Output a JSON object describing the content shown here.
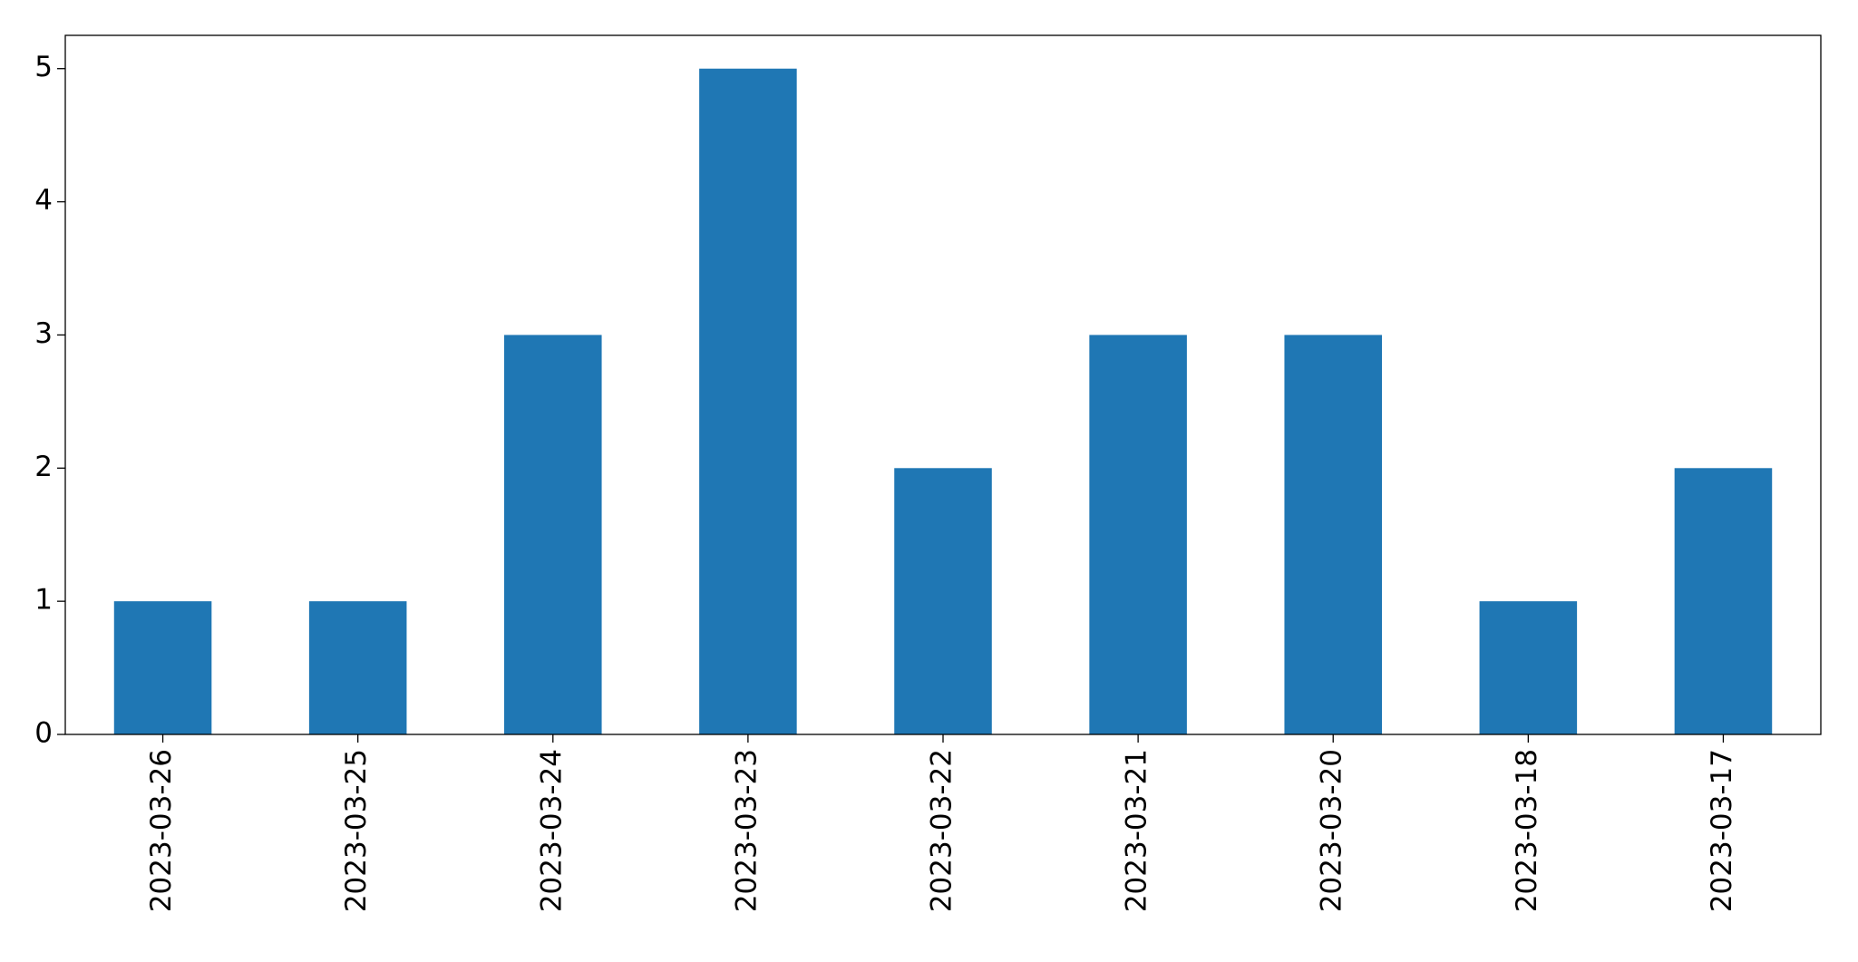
{
  "chart_data": {
    "type": "bar",
    "categories": [
      "2023-03-26",
      "2023-03-25",
      "2023-03-24",
      "2023-03-23",
      "2023-03-22",
      "2023-03-21",
      "2023-03-20",
      "2023-03-18",
      "2023-03-17"
    ],
    "values": [
      1,
      1,
      3,
      5,
      2,
      3,
      3,
      1,
      2
    ],
    "color": "#1f77b4",
    "ylim": [
      0,
      5.25
    ],
    "yticks": [
      0,
      1,
      2,
      3,
      4,
      5
    ],
    "grid": false
  }
}
